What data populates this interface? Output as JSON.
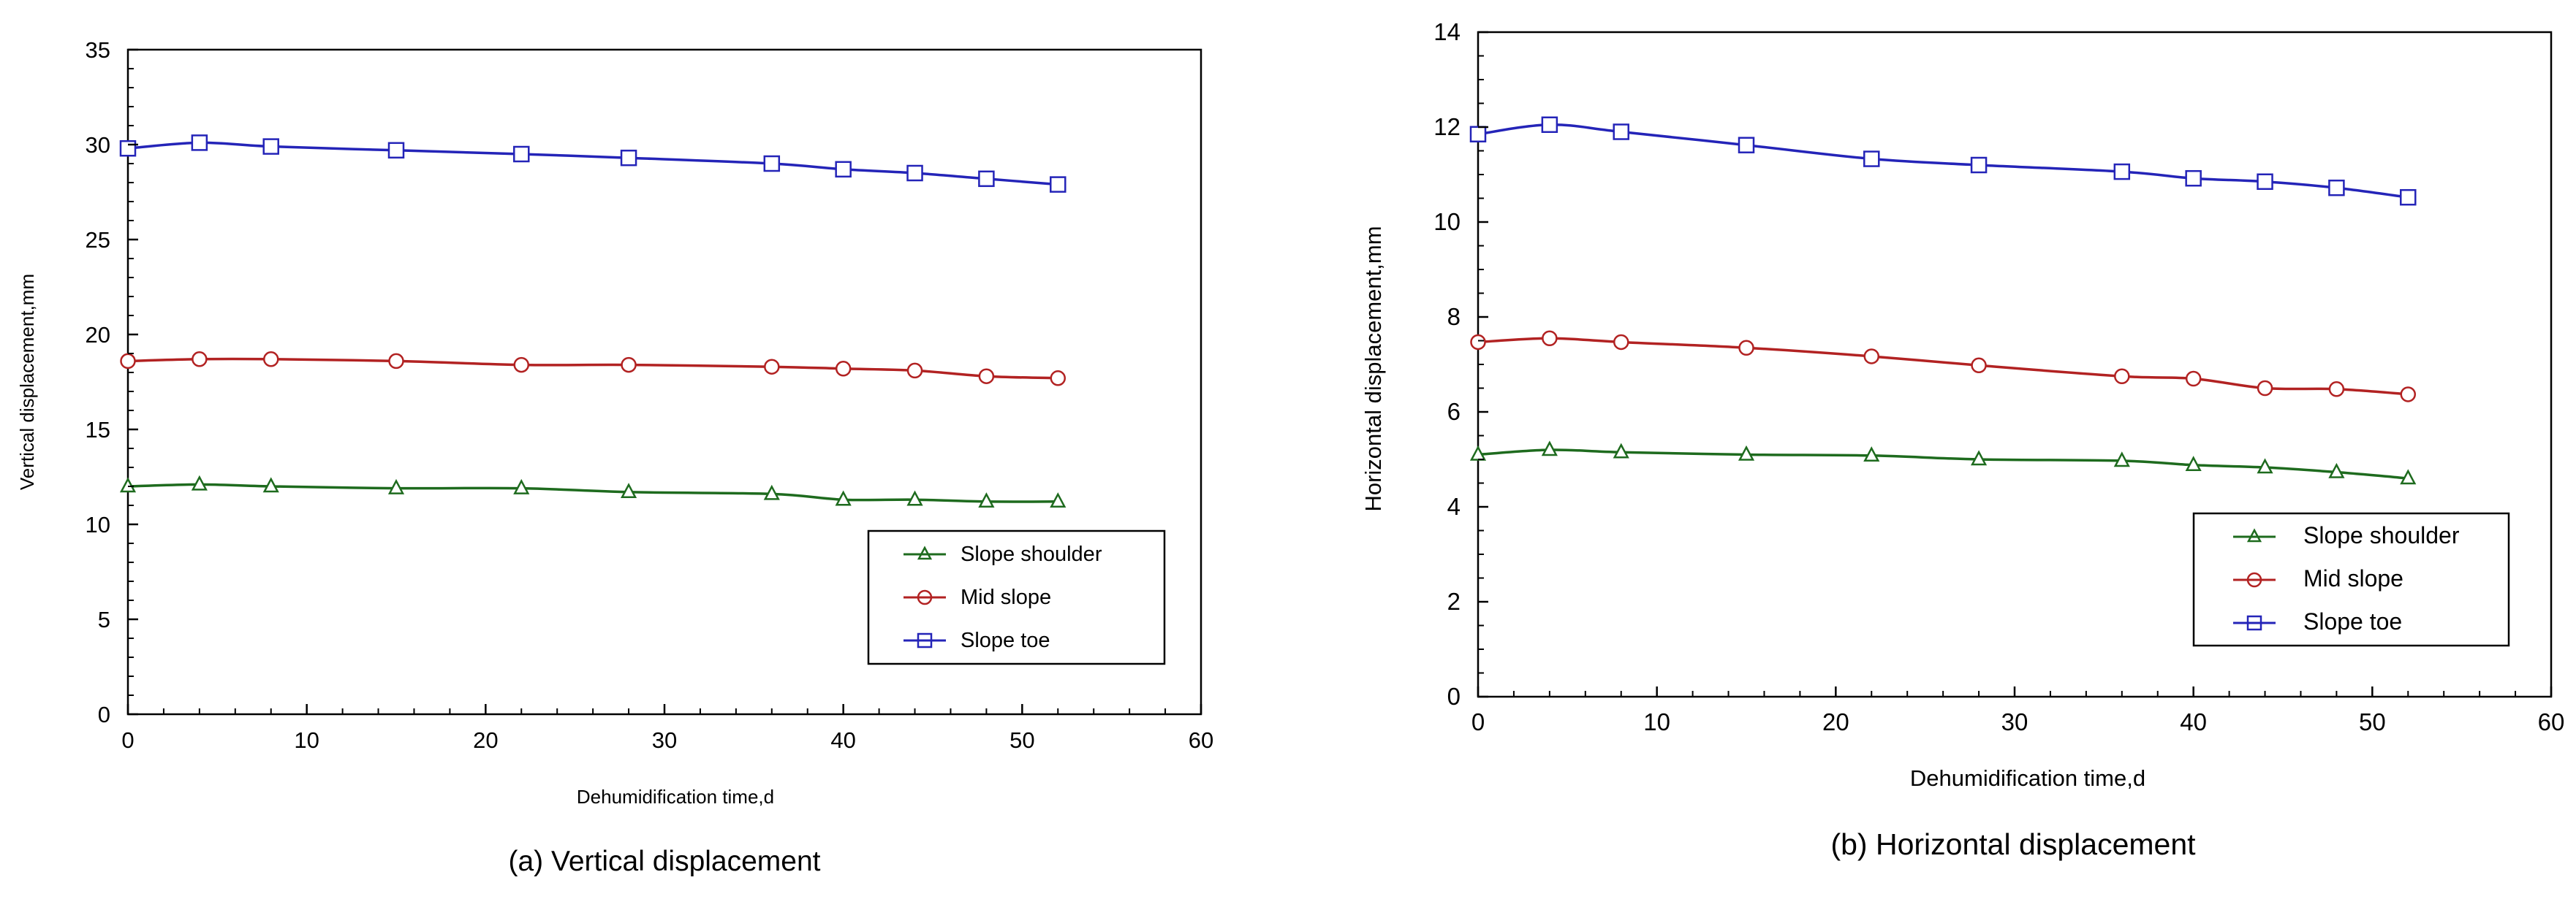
{
  "chart_data": [
    {
      "type": "line",
      "caption": "(a) Vertical displacement",
      "title": "",
      "xlabel": "Dehumidification time,d",
      "ylabel": "Vertical displacement,mm",
      "xlim": [
        0,
        60
      ],
      "ylim": [
        0,
        35
      ],
      "x_ticks": [
        0,
        10,
        20,
        30,
        40,
        50,
        60
      ],
      "y_ticks": [
        0,
        5,
        10,
        15,
        20,
        25,
        30,
        35
      ],
      "x_tick_labels": [
        "0",
        "10",
        "20",
        "30",
        "40",
        "50",
        "60"
      ],
      "y_tick_labels": [
        "0",
        "5",
        "10",
        "15",
        "20",
        "25",
        "30",
        "35"
      ],
      "grid": false,
      "legend_position": "bottom-right",
      "x": [
        0,
        4,
        8,
        15,
        22,
        28,
        36,
        40,
        44,
        48,
        52
      ],
      "series": [
        {
          "name": "Slope shoulder",
          "color": "#1e6b1e",
          "marker": "triangle",
          "values": [
            12.0,
            12.1,
            12.0,
            11.9,
            11.9,
            11.7,
            11.6,
            11.3,
            11.3,
            11.2,
            11.2
          ]
        },
        {
          "name": "Mid slope",
          "color": "#b22222",
          "marker": "circle",
          "values": [
            18.6,
            18.7,
            18.7,
            18.6,
            18.4,
            18.4,
            18.3,
            18.2,
            18.1,
            17.8,
            17.7
          ]
        },
        {
          "name": "Slope toe",
          "color": "#2424b8",
          "marker": "square",
          "values": [
            29.8,
            30.1,
            29.9,
            29.7,
            29.5,
            29.3,
            29.0,
            28.7,
            28.5,
            28.2,
            27.9
          ]
        }
      ]
    },
    {
      "type": "line",
      "caption": "(b) Horizontal displacement",
      "title": "",
      "xlabel": "Dehumidification time,d",
      "ylabel": "Horizontal displacement,mm",
      "xlim": [
        0,
        60
      ],
      "ylim": [
        0,
        14
      ],
      "x_ticks": [
        0,
        10,
        20,
        30,
        40,
        50,
        60
      ],
      "y_ticks": [
        0,
        2,
        4,
        6,
        8,
        10,
        12,
        14
      ],
      "x_tick_labels": [
        "0",
        "10",
        "20",
        "30",
        "40",
        "50",
        "60"
      ],
      "y_tick_labels": [
        "0",
        "2",
        "4",
        "6",
        "8",
        "10",
        "12",
        "14"
      ],
      "grid": false,
      "legend_position": "bottom-right",
      "x": [
        0,
        4,
        8,
        15,
        22,
        28,
        36,
        40,
        44,
        48,
        52
      ],
      "series": [
        {
          "name": "Slope shoulder",
          "color": "#1e6b1e",
          "marker": "triangle",
          "values": [
            5.1,
            5.2,
            5.15,
            5.1,
            5.08,
            5.0,
            4.97,
            4.88,
            4.83,
            4.73,
            4.6
          ]
        },
        {
          "name": "Mid slope",
          "color": "#b22222",
          "marker": "circle",
          "values": [
            7.47,
            7.55,
            7.47,
            7.35,
            7.17,
            6.98,
            6.75,
            6.7,
            6.5,
            6.48,
            6.37
          ]
        },
        {
          "name": "Slope toe",
          "color": "#2424b8",
          "marker": "square",
          "values": [
            11.85,
            12.05,
            11.9,
            11.62,
            11.33,
            11.2,
            11.06,
            10.92,
            10.85,
            10.72,
            10.52
          ]
        }
      ]
    }
  ]
}
